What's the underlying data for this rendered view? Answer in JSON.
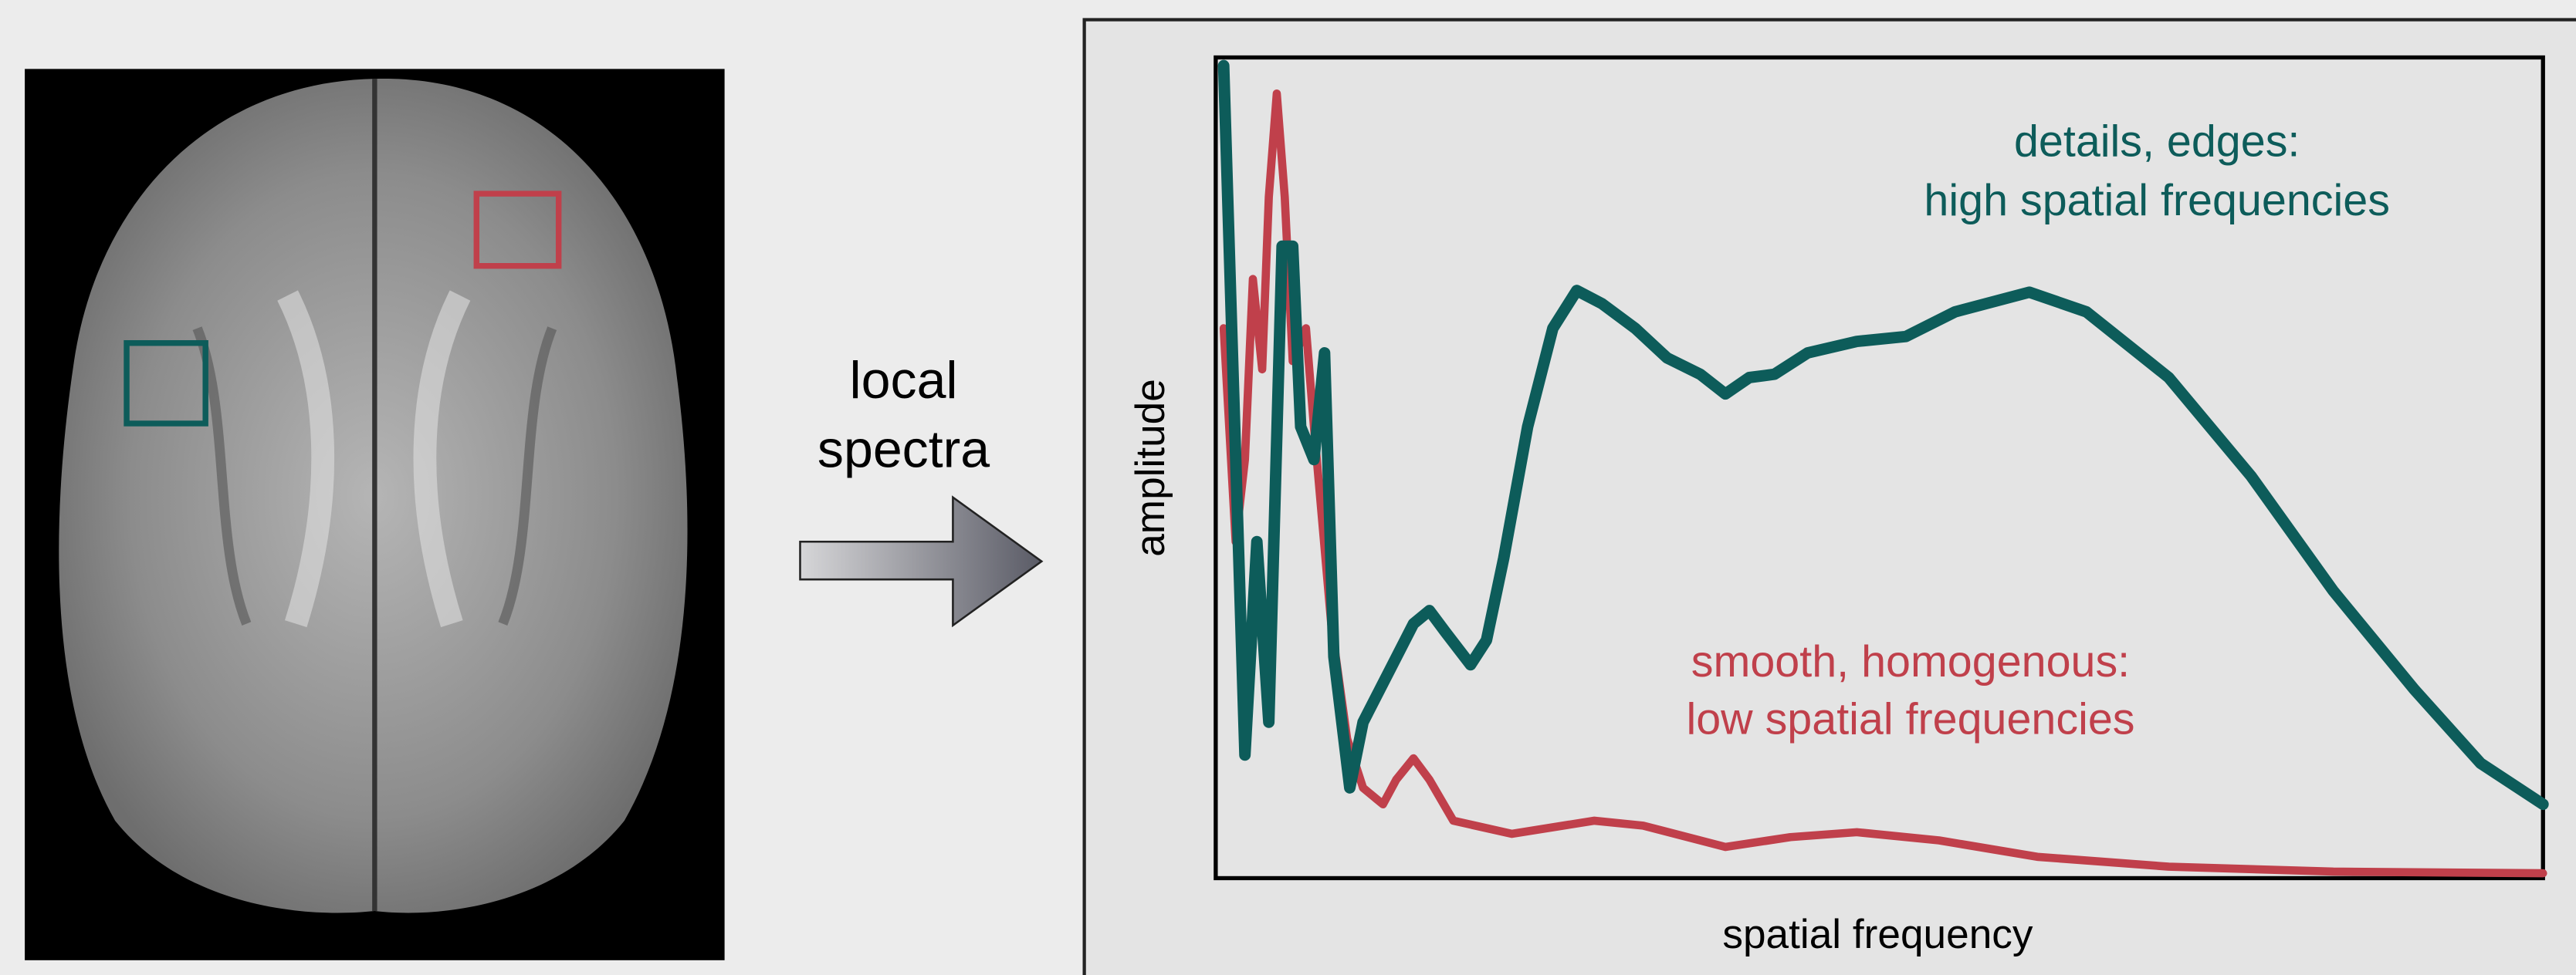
{
  "arrow_label": [
    "local",
    "spectra"
  ],
  "chart_data": {
    "type": "line",
    "xlabel": "spatial frequency",
    "ylabel": "amplitude",
    "xlim": [
      0,
      100
    ],
    "ylim": [
      0,
      100
    ],
    "annotations": [
      {
        "lines": [
          "details, edges:",
          "high spatial frequencies"
        ],
        "color": "#0d5c5a"
      },
      {
        "lines": [
          "smooth, homogenous:",
          "low spatial frequencies"
        ],
        "color": "#c0404b"
      }
    ],
    "series": [
      {
        "color": "#0d5c5a",
        "x": [
          0.6,
          1.2,
          2.2,
          3.1,
          4.0,
          5.0,
          5.8,
          6.4,
          7.4,
          8.2,
          8.9,
          10.1,
          11.1,
          13.0,
          14.9,
          16.1,
          17.3,
          19.2,
          20.4,
          21.7,
          23.5,
          25.4,
          27.2,
          29.1,
          31.6,
          34.0,
          36.5,
          38.4,
          40.2,
          42.1,
          44.6,
          48.3,
          52.0,
          55.7,
          61.3,
          65.6,
          71.8,
          78.0,
          84.2,
          90.3,
          95.3,
          100
        ],
        "values": [
          99,
          67,
          15,
          41,
          19,
          77,
          77,
          55,
          51,
          64,
          27,
          11,
          19,
          25,
          31,
          32.6,
          30,
          26,
          29,
          39,
          55,
          67,
          71.6,
          70,
          67,
          63.4,
          61.4,
          59,
          61,
          61.4,
          64,
          65.4,
          66,
          69,
          71.4,
          69,
          61,
          49,
          35,
          23,
          14,
          9
        ]
      },
      {
        "color": "#c0404b",
        "x": [
          0.6,
          1.5,
          2.2,
          2.8,
          3.5,
          4.0,
          4.6,
          5.2,
          5.8,
          6.8,
          7.4,
          8.7,
          9.9,
          11.1,
          12.6,
          13.6,
          14.9,
          16.1,
          17.9,
          22.3,
          28.5,
          32.2,
          38.4,
          43.3,
          48.3,
          54.5,
          61.9,
          71.8,
          84.2,
          100
        ],
        "values": [
          67,
          41,
          51,
          73,
          62,
          83,
          95.6,
          83,
          63,
          67,
          55,
          31,
          17,
          11,
          9,
          12,
          14.6,
          12,
          7,
          5.4,
          7,
          6.4,
          3.8,
          5,
          5.6,
          4.6,
          2.6,
          1.4,
          0.8,
          0.6
        ]
      }
    ]
  }
}
